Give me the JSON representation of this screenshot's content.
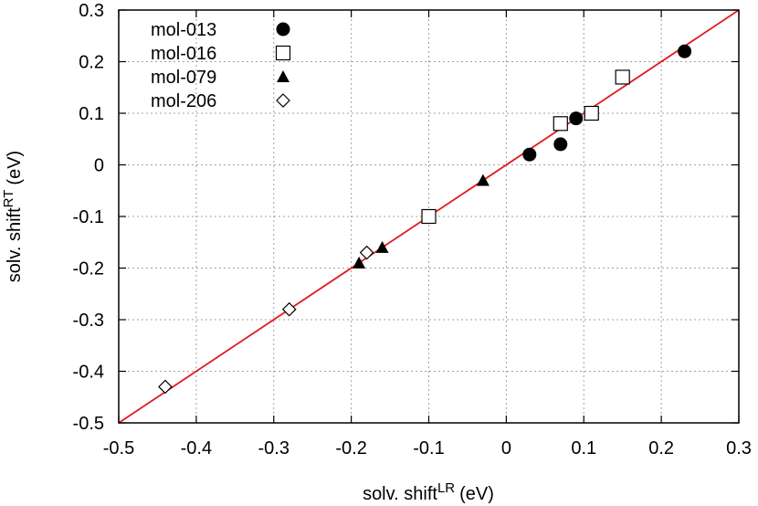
{
  "chart_data": {
    "type": "scatter",
    "title": "",
    "xlabel": "solv. shift",
    "xlabel_superscript": "LR",
    "xlabel_unit": "(eV)",
    "ylabel": "solv. shift",
    "ylabel_superscript": "RT",
    "ylabel_unit": "(eV)",
    "xlim": [
      -0.5,
      0.3
    ],
    "ylim": [
      -0.5,
      0.3
    ],
    "xticks": [
      -0.5,
      -0.4,
      -0.3,
      -0.2,
      -0.1,
      0,
      0.1,
      0.2,
      0.3
    ],
    "xtick_labels": [
      "-0.5",
      "-0.4",
      "-0.3",
      "-0.2",
      "-0.1",
      "0",
      "0.1",
      "0.2",
      "0.3"
    ],
    "yticks": [
      -0.5,
      -0.4,
      -0.3,
      -0.2,
      -0.1,
      0,
      0.1,
      0.2,
      0.3
    ],
    "ytick_labels": [
      "-0.5",
      "-0.4",
      "-0.3",
      "-0.2",
      "-0.1",
      "0",
      "0.1",
      "0.2",
      "0.3"
    ],
    "grid": true,
    "legend_position": "top-left",
    "reference_line": {
      "name": "y = x",
      "x": [
        -0.5,
        0.3
      ],
      "y": [
        -0.5,
        0.3
      ],
      "color": "#e41a1c"
    },
    "series": [
      {
        "name": "mol-013",
        "marker": "filled-circle",
        "points": [
          [
            0.03,
            0.02
          ],
          [
            0.07,
            0.04
          ],
          [
            0.09,
            0.09
          ],
          [
            0.23,
            0.22
          ]
        ]
      },
      {
        "name": "mol-016",
        "marker": "open-square",
        "points": [
          [
            -0.1,
            -0.1
          ],
          [
            0.07,
            0.08
          ],
          [
            0.11,
            0.1
          ],
          [
            0.15,
            0.17
          ]
        ]
      },
      {
        "name": "mol-079",
        "marker": "filled-triangle",
        "points": [
          [
            -0.19,
            -0.19
          ],
          [
            -0.16,
            -0.16
          ],
          [
            -0.03,
            -0.03
          ]
        ]
      },
      {
        "name": "mol-206",
        "marker": "open-diamond",
        "points": [
          [
            -0.44,
            -0.43
          ],
          [
            -0.28,
            -0.28
          ],
          [
            -0.18,
            -0.17
          ]
        ]
      }
    ]
  }
}
